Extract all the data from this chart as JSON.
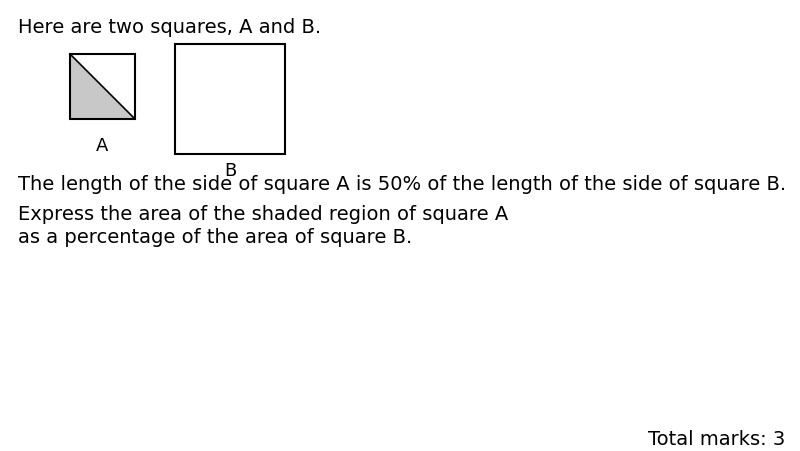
{
  "title_text": "Here are two squares, A and B.",
  "line1_text": "The length of the side of square A is 50% of the length of the side of square B.",
  "line2_text": "Express the area of the shaded region of square A",
  "line3_text": "as a percentage of the area of square B.",
  "total_marks_text": "Total marks: 3",
  "shade_color": "#c8c8c8",
  "border_color": "#000000",
  "background_color": "#ffffff",
  "title_fontsize": 14,
  "body_fontsize": 14,
  "label_fontsize": 13
}
